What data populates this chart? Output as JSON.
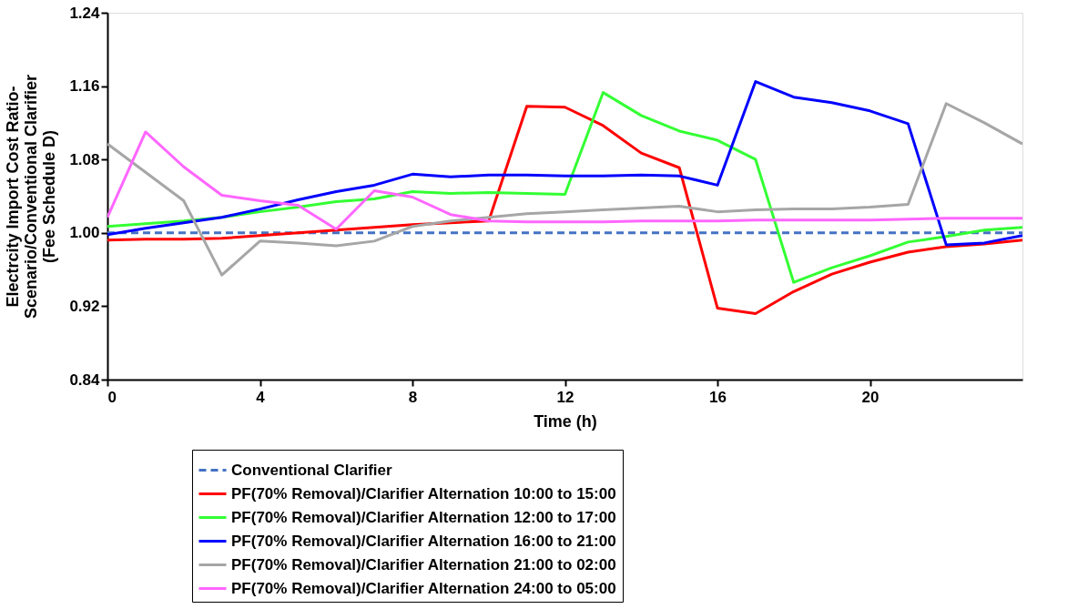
{
  "chart_data": {
    "type": "line",
    "xlabel": "Time (h)",
    "ylabel": "Electrcity Import  Cost Ratio-\nScenario/Conventional Clarifier\n(Fee Schedule D)",
    "x": [
      0,
      1,
      2,
      3,
      4,
      5,
      6,
      7,
      8,
      9,
      10,
      11,
      12,
      13,
      14,
      15,
      16,
      17,
      18,
      19,
      20,
      21,
      22,
      23,
      24
    ],
    "xlim": [
      0,
      24
    ],
    "xticks": [
      0,
      4,
      8,
      12,
      16,
      20
    ],
    "ylim": [
      0.84,
      1.24
    ],
    "yticks": [
      0.84,
      0.92,
      {
        "value": 1,
        "label": "1.00"
      },
      1.08,
      1.16,
      1.24
    ],
    "grid": false,
    "legend": "bottom",
    "marker": "none",
    "series": [
      {
        "name": "Conventional Clarifier",
        "color": "#4472c4",
        "line_style": "dashed",
        "values": [
          1,
          1,
          1,
          1,
          1,
          1,
          1,
          1,
          1,
          1,
          1,
          1,
          1,
          1,
          1,
          1,
          1,
          1,
          1,
          1,
          1,
          1,
          1,
          1,
          1
        ]
      },
      {
        "name": "PF(70% Removal)/Clarifier Alternation 10:00 to 15:00",
        "color": "#ff0000",
        "line_style": "solid",
        "values": [
          0.992,
          0.993,
          0.993,
          0.994,
          0.997,
          1.0,
          1.003,
          1.006,
          1.009,
          1.011,
          1.013,
          1.138,
          1.137,
          1.117,
          1.087,
          1.071,
          0.918,
          0.912,
          0.936,
          0.955,
          0.968,
          0.979,
          0.985,
          0.988,
          0.992
        ]
      },
      {
        "name": "PF(70% Removal)/Clarifier Alternation 12:00 to 17:00",
        "color": "#33ff33",
        "line_style": "solid",
        "values": [
          1.007,
          1.01,
          1.013,
          1.017,
          1.023,
          1.028,
          1.034,
          1.037,
          1.045,
          1.043,
          1.044,
          1.043,
          1.042,
          1.153,
          1.128,
          1.111,
          1.101,
          1.08,
          0.946,
          0.962,
          0.975,
          0.99,
          0.996,
          1.003,
          1.006
        ]
      },
      {
        "name": "PF(70% Removal)/Clarifier Alternation 16:00 to 21:00",
        "color": "#0000ff",
        "line_style": "solid",
        "values": [
          0.998,
          1.005,
          1.011,
          1.017,
          1.026,
          1.036,
          1.045,
          1.052,
          1.064,
          1.061,
          1.063,
          1.063,
          1.062,
          1.062,
          1.063,
          1.062,
          1.052,
          1.165,
          1.148,
          1.142,
          1.133,
          1.119,
          0.987,
          0.989,
          0.997
        ]
      },
      {
        "name": "PF(70% Removal)/Clarifier Alternation 21:00 to 02:00",
        "color": "#a6a6a6",
        "line_style": "solid",
        "values": [
          1.097,
          1.066,
          1.035,
          0.954,
          0.991,
          0.989,
          0.986,
          0.991,
          1.007,
          1.013,
          1.017,
          1.021,
          1.023,
          1.025,
          1.027,
          1.029,
          1.023,
          1.025,
          1.026,
          1.026,
          1.028,
          1.031,
          1.141,
          1.12,
          1.097
        ]
      },
      {
        "name": "PF(70% Removal)/Clarifier Alternation 24:00 to 05:00",
        "color": "#ff66ff",
        "line_style": "solid",
        "values": [
          1.017,
          1.11,
          1.072,
          1.041,
          1.035,
          1.03,
          1.004,
          1.046,
          1.039,
          1.02,
          1.013,
          1.012,
          1.012,
          1.012,
          1.013,
          1.013,
          1.013,
          1.014,
          1.014,
          1.014,
          1.014,
          1.015,
          1.016,
          1.016,
          1.016
        ]
      }
    ]
  }
}
